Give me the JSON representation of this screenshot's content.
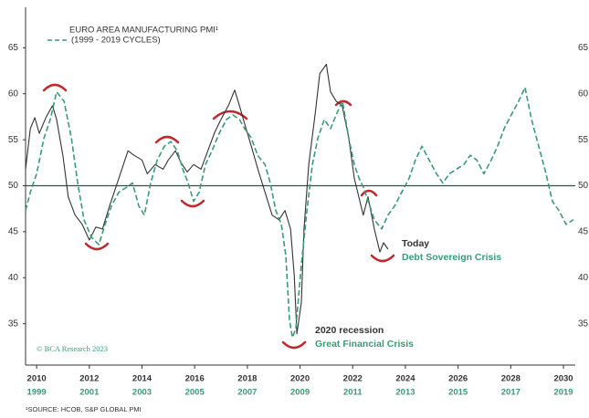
{
  "chart_data": {
    "type": "line",
    "title": "EURO AREA MANUFACTURING PMI¹",
    "source": "¹SOURCE: HCOB, S&P GLOBAL PMI",
    "credit": "© BCA Research 2023",
    "xlim": [
      2009.58,
      2030.45
    ],
    "xticks": [
      2010,
      2012,
      2014,
      2016,
      2018,
      2020,
      2022,
      2024,
      2026,
      2028,
      2030
    ],
    "x2lim": [
      1998.58,
      2019.45
    ],
    "x2ticks": [
      1999,
      2001,
      2003,
      2005,
      2007,
      2009,
      2011,
      2013,
      2015,
      2017,
      2019
    ],
    "ylim": [
      30.5,
      69.4
    ],
    "yticks": [
      35,
      40,
      45,
      50,
      55,
      60,
      65
    ],
    "y2lim": [
      30.5,
      69.4
    ],
    "y2ticks": [
      35,
      40,
      45,
      50,
      55,
      60,
      65
    ],
    "hline": 50,
    "series": [
      {
        "color": "#333333",
        "dash": false,
        "x": [
          2009.58,
          2009.76,
          2009.93,
          2010.1,
          2010.35,
          2010.6,
          2010.76,
          2011.0,
          2011.2,
          2011.46,
          2011.73,
          2012.0,
          2012.25,
          2012.5,
          2012.77,
          2013.12,
          2013.47,
          2013.7,
          2014.0,
          2014.2,
          2014.5,
          2014.8,
          2015.0,
          2015.27,
          2015.48,
          2015.72,
          2015.96,
          2016.24,
          2016.5,
          2016.76,
          2017.0,
          2017.28,
          2017.52,
          2017.7,
          2017.9,
          2018.15,
          2018.4,
          2018.67,
          2018.94,
          2019.2,
          2019.43,
          2019.64,
          2019.78,
          2019.88,
          2020.05,
          2020.15,
          2020.33,
          2020.57,
          2020.75,
          2021.0,
          2021.16,
          2021.37,
          2021.6,
          2021.85,
          2022.06,
          2022.23,
          2022.4,
          2022.58,
          2022.82,
          2023.03,
          2023.17,
          2023.34
        ],
        "values": [
          51.8,
          56.2,
          57.4,
          55.7,
          57.4,
          58.7,
          57.2,
          53.2,
          48.8,
          46.8,
          45.8,
          44.1,
          45.5,
          45.3,
          47.8,
          50.8,
          53.8,
          53.3,
          52.8,
          51.3,
          52.3,
          51.8,
          52.8,
          53.8,
          52.5,
          51.5,
          52.3,
          51.8,
          53.8,
          55.8,
          57.2,
          58.7,
          60.4,
          58.7,
          56.7,
          54.3,
          51.8,
          49.3,
          46.8,
          46.3,
          47.3,
          45.3,
          40.3,
          33.9,
          37.3,
          45.3,
          52.3,
          57.7,
          62.2,
          63.2,
          60.2,
          59.2,
          58.7,
          55.2,
          50.8,
          48.8,
          46.8,
          48.8,
          45.3,
          42.8,
          43.8,
          43.1
        ]
      },
      {
        "name": "(1999 - 2019 CYCLES)",
        "color": "#3a9a74",
        "dash": true,
        "xaxis": "x2",
        "x": [
          1998.58,
          1998.76,
          1999.0,
          1999.28,
          1999.52,
          1999.76,
          2000.04,
          2000.32,
          2000.56,
          2000.8,
          2001.08,
          2001.36,
          2001.6,
          2001.84,
          2002.12,
          2002.4,
          2002.64,
          2002.88,
          2003.09,
          2003.33,
          2003.58,
          2003.85,
          2004.1,
          2004.34,
          2004.55,
          2004.75,
          2004.96,
          2005.17,
          2005.41,
          2005.66,
          2005.93,
          2006.21,
          2006.45,
          2006.7,
          2006.9,
          2007.15,
          2007.39,
          2007.67,
          2007.87,
          2008.08,
          2008.29,
          2008.46,
          2008.6,
          2008.71,
          2008.84,
          2009.05,
          2009.26,
          2009.47,
          2009.68,
          2009.92,
          2010.16,
          2010.37,
          2010.61,
          2010.85,
          2011.06,
          2011.24,
          2011.41,
          2011.65,
          2011.82,
          2012.1,
          2012.34,
          2012.59,
          2012.86,
          2013.14,
          2013.38,
          2013.63,
          2013.9,
          2014.18,
          2014.42,
          2014.67,
          2014.94,
          2015.22,
          2015.46,
          2015.71,
          2015.98,
          2016.26,
          2016.5,
          2016.75,
          2017.02,
          2017.3,
          2017.54,
          2017.79,
          2018.06,
          2018.34,
          2018.58,
          2018.83,
          2019.1,
          2019.38
        ],
        "values": [
          47.3,
          49.3,
          51.3,
          55.2,
          57.2,
          60.2,
          59.2,
          55.2,
          50.3,
          46.3,
          44.4,
          43.6,
          45.8,
          47.8,
          49.3,
          49.8,
          50.3,
          47.8,
          46.8,
          50.3,
          52.8,
          54.3,
          54.8,
          53.8,
          51.8,
          50.3,
          48.3,
          49.3,
          52.3,
          53.8,
          55.7,
          57.2,
          57.7,
          57.2,
          56.2,
          55.2,
          53.3,
          52.3,
          50.3,
          47.3,
          45.8,
          42.4,
          35.4,
          33.5,
          34.5,
          41.4,
          47.3,
          52.3,
          55.2,
          57.2,
          56.2,
          57.7,
          59.2,
          55.2,
          52.3,
          50.8,
          49.8,
          47.8,
          46.3,
          45.3,
          46.8,
          47.8,
          49.3,
          50.8,
          52.8,
          54.3,
          52.8,
          51.3,
          50.3,
          51.3,
          51.8,
          52.3,
          53.3,
          52.8,
          51.3,
          52.8,
          54.3,
          56.2,
          57.7,
          59.2,
          60.7,
          57.2,
          54.3,
          51.3,
          48.3,
          47.3,
          45.8,
          46.3
        ]
      }
    ],
    "annotations": [
      {
        "text": "Today",
        "color": "#333333"
      },
      {
        "text": "Debt Sovereign Crisis",
        "color": "#3a9a74"
      },
      {
        "text": "2020 recession",
        "color": "#333333"
      },
      {
        "text": "Great Financial Crisis",
        "color": "#3a9a74"
      }
    ]
  }
}
